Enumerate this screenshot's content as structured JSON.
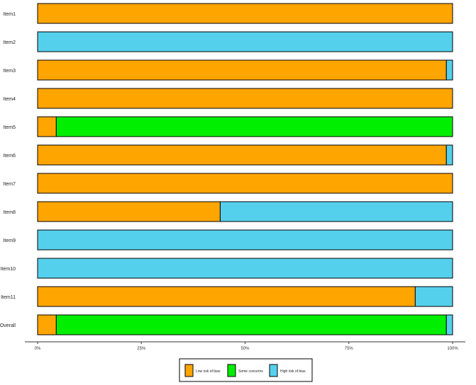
{
  "chart_data": {
    "type": "bar",
    "orientation": "horizontal",
    "stacked": true,
    "categories": [
      "Item1",
      "Item2",
      "Item3",
      "Item4",
      "Item5",
      "Item6",
      "Item7",
      "Item8",
      "Item9",
      "Item10",
      "Item11",
      "Overall"
    ],
    "series": [
      {
        "name": "Low risk of bias",
        "color": "#ffa500",
        "values": [
          100,
          0,
          98.5,
          100,
          4.5,
          98.5,
          100,
          44,
          0,
          0,
          91,
          4.5
        ]
      },
      {
        "name": "Some concerns",
        "color": "#00ee00",
        "values": [
          0,
          0,
          0,
          0,
          95.5,
          0,
          0,
          0,
          0,
          0,
          0,
          94
        ]
      },
      {
        "name": "High risk of bias",
        "color": "#55d0ec",
        "values": [
          0,
          100,
          1.5,
          0,
          0,
          1.5,
          0,
          56,
          100,
          100,
          9,
          1.5
        ]
      }
    ],
    "x_ticks": [
      "0%",
      "25%",
      "50%",
      "75%",
      "100%"
    ],
    "xlim": [
      0,
      100
    ],
    "legend_position": "bottom",
    "grid": false
  }
}
